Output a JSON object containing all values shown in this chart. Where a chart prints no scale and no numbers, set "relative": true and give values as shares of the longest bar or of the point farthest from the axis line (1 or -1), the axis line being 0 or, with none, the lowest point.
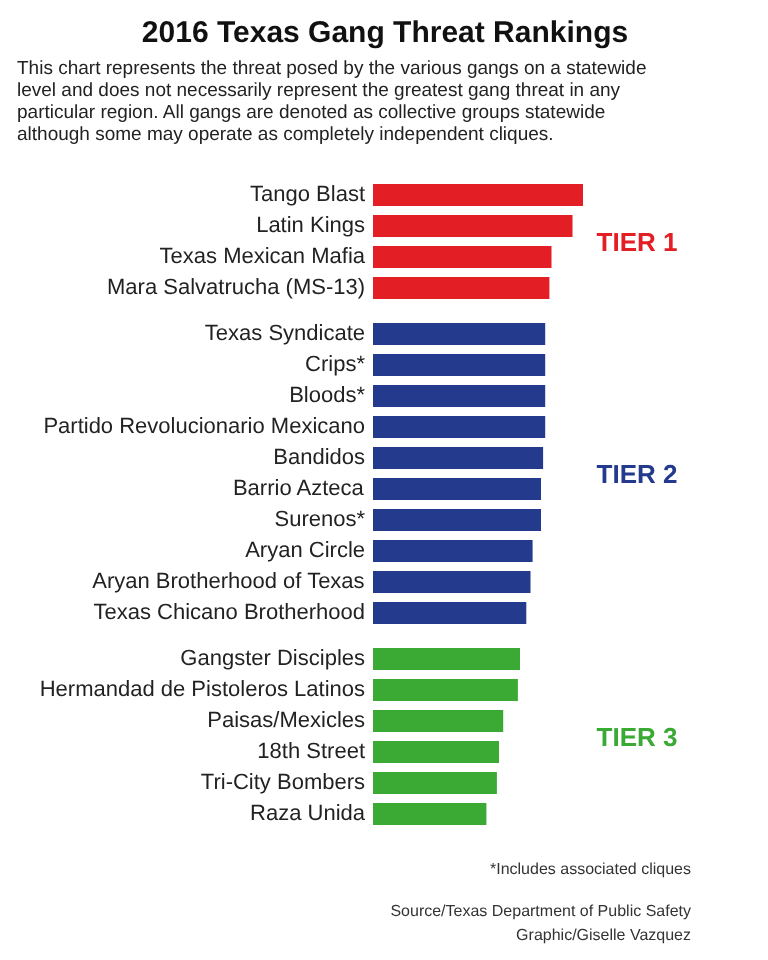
{
  "chart_data": {
    "type": "bar",
    "orientation": "horizontal",
    "relative": true,
    "title": "2016 Texas Gang Threat Rankings",
    "subtitle": "This chart represents the threat posed by the various gangs on a statewide level and does not necessarily represent the greatest gang threat in any particular region. All gangs are denoted as collective groups statewide although some may operate as completely independent cliques.",
    "categories": [
      "Tango Blast",
      "Latin Kings",
      "Texas Mexican Mafia",
      "Mara Salvatrucha (MS-13)",
      "Texas Syndicate",
      "Crips*",
      "Bloods*",
      "Partido Revolucionario Mexicano",
      "Bandidos",
      "Barrio Azteca",
      "Surenos*",
      "Aryan Circle",
      "Aryan Brotherhood of Texas",
      "Texas Chicano Brotherhood",
      "Gangster Disciples",
      "Hermandad de Pistoleros Latinos",
      "Paisas/Mexicles",
      "18th Street",
      "Tri-City Bombers",
      "Raza Unida"
    ],
    "series": [
      {
        "name": "TIER 1",
        "color": "#e31e24",
        "values": [
          1,
          0.95,
          0.85,
          0.84,
          null,
          null,
          null,
          null,
          null,
          null,
          null,
          null,
          null,
          null,
          null,
          null,
          null,
          null,
          null,
          null
        ]
      },
      {
        "name": "TIER 2",
        "color": "#243a8c",
        "values": [
          null,
          null,
          null,
          null,
          0.82,
          0.82,
          0.82,
          0.82,
          0.81,
          0.8,
          0.8,
          0.76,
          0.75,
          0.73,
          null,
          null,
          null,
          null,
          null,
          null
        ]
      },
      {
        "name": "TIER 3",
        "color": "#3aaa35",
        "values": [
          null,
          null,
          null,
          null,
          null,
          null,
          null,
          null,
          null,
          null,
          null,
          null,
          null,
          null,
          0.7,
          0.69,
          0.62,
          0.6,
          0.59,
          0.54
        ]
      }
    ],
    "annotations": [
      "*Includes associated cliques",
      "Source/Texas Department of Public Safety",
      "Graphic/Giselle Vazquez"
    ]
  }
}
